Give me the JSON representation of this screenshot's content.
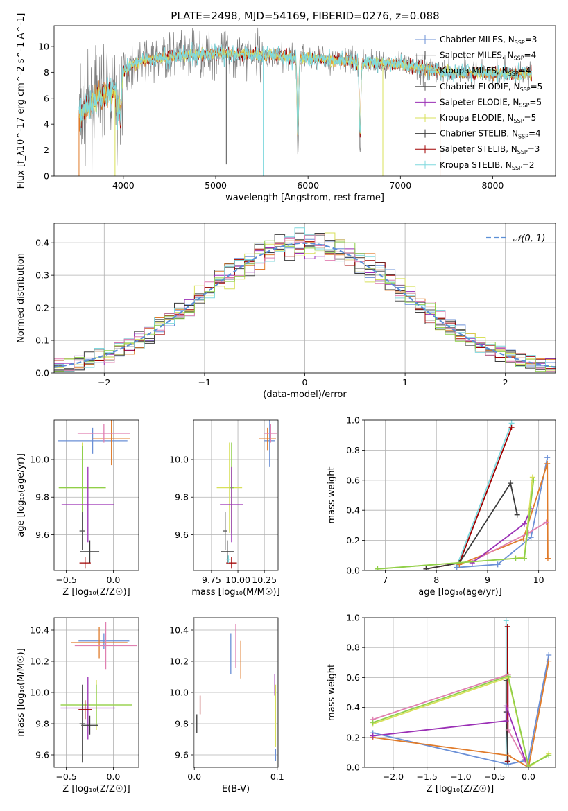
{
  "figure_title": "PLATE=2498, MJD=54169, FIBERID=0276, z=0.088",
  "colors": {
    "chabrier_miles": "#6a8fd6",
    "salpeter_miles": "#404040",
    "kroupa_miles": "#e07b2a",
    "chabrier_elodie": "#555555",
    "salpeter_elodie": "#9a2fb5",
    "kroupa_elodie": "#d8e05a",
    "chabrier_stelib": "#3a3a3a",
    "salpeter_stelib": "#a00000",
    "kroupa_stelib": "#7fd8de",
    "pink": "#e07fb0",
    "green": "#8ecf4a",
    "grey_spectrum": "#808080",
    "cyan_spectrum": "#77dddd",
    "normal_curve": "#5b8fd6",
    "grid": "#b0b0b0"
  },
  "chart_data": [
    {
      "id": "spectrum",
      "type": "line",
      "title": "PLATE=2498, MJD=54169, FIBERID=0276, z=0.088",
      "xlabel": "wavelength [Angstrom, rest frame]",
      "ylabel": "Flux [f_λ10^-17 erg cm^-2 s^-1 A^-1]",
      "xlim": [
        3250,
        8680
      ],
      "ylim": [
        0,
        11.6
      ],
      "xticks": [
        4000,
        5000,
        6000,
        7000,
        8000
      ],
      "yticks": [
        0,
        2,
        4,
        6,
        8,
        10
      ],
      "grid": false,
      "legend_position": "top-right",
      "legend": [
        {
          "label": "Chabrier MILES, N",
          "sub": "SSP",
          "tail": "=3",
          "color": "#6a8fd6"
        },
        {
          "label": "Salpeter MILES, N",
          "sub": "SSP",
          "tail": "=4",
          "color": "#404040"
        },
        {
          "label": "Kroupa MILES, N",
          "sub": "SSP",
          "tail": "=4",
          "color": "#e07b2a"
        },
        {
          "label": "Chabrier ELODIE, N",
          "sub": "SSP",
          "tail": "=5",
          "color": "#555555"
        },
        {
          "label": "Salpeter ELODIE, N",
          "sub": "SSP",
          "tail": "=5",
          "color": "#9a2fb5"
        },
        {
          "label": "Kroupa ELODIE, N",
          "sub": "SSP",
          "tail": "=5",
          "color": "#d8e05a"
        },
        {
          "label": "Chabrier STELIB, N",
          "sub": "SSP",
          "tail": "=4",
          "color": "#3a3a3a"
        },
        {
          "label": "Salpeter STELIB, N",
          "sub": "SSP",
          "tail": "=3",
          "color": "#a00000"
        },
        {
          "label": "Kroupa STELIB, N",
          "sub": "SSP",
          "tail": "=2",
          "color": "#7fd8de"
        }
      ],
      "continuum": [
        [
          3520,
          4.6
        ],
        [
          3600,
          5.2
        ],
        [
          3700,
          5.9
        ],
        [
          3800,
          6.3
        ],
        [
          3900,
          6.6
        ],
        [
          3950,
          6.5
        ],
        [
          4000,
          8.0
        ],
        [
          4100,
          8.6
        ],
        [
          4200,
          8.9
        ],
        [
          4400,
          9.1
        ],
        [
          4600,
          9.3
        ],
        [
          4800,
          9.4
        ],
        [
          5000,
          9.5
        ],
        [
          5200,
          9.4
        ],
        [
          5400,
          9.4
        ],
        [
          5600,
          9.3
        ],
        [
          5800,
          9.2
        ],
        [
          6000,
          9.1
        ],
        [
          6200,
          9.0
        ],
        [
          6400,
          8.9
        ],
        [
          6600,
          8.8
        ],
        [
          6800,
          8.7
        ],
        [
          7000,
          8.6
        ],
        [
          7200,
          8.4
        ],
        [
          7400,
          8.1
        ],
        [
          7600,
          8.0
        ],
        [
          7800,
          8.0
        ],
        [
          8000,
          7.9
        ],
        [
          8200,
          7.9
        ],
        [
          8400,
          7.9
        ]
      ],
      "dips": [
        [
          3935,
          2.4
        ],
        [
          3970,
          3.0
        ],
        [
          5890,
          7.6
        ],
        [
          6563,
          6.9
        ]
      ]
    },
    {
      "id": "residuals",
      "type": "histogram",
      "xlabel": "(data-model)/error",
      "ylabel": "Normed distribution",
      "xlim": [
        -2.5,
        2.5
      ],
      "ylim": [
        0,
        0.46
      ],
      "xticks": [
        -2,
        -1,
        0,
        1,
        2
      ],
      "yticks": [
        0,
        0.1,
        0.2,
        0.3,
        0.4
      ],
      "grid": true,
      "legend_position": "top-right",
      "legend": [
        {
          "label": "𝒩(0, 1)",
          "color": "#5b8fd6",
          "dash": true
        }
      ],
      "bin_width": 0.1
    },
    {
      "id": "age_vs_Z",
      "type": "errorbar",
      "xlabel": "Z [log₁₀(Z/Z☉)]",
      "ylabel": "age  [log₁₀(age/yr)]",
      "xlim": [
        -0.63,
        0.27
      ],
      "ylim": [
        9.41,
        10.21
      ],
      "xticks": [
        -0.5,
        0.0
      ],
      "yticks": [
        9.6,
        9.8,
        10.0
      ],
      "grid": true,
      "points": [
        {
          "x": -0.22,
          "y": 10.1,
          "xerr": 0.37,
          "yerr": 0.07,
          "color": "#6a8fd6"
        },
        {
          "x": -0.02,
          "y": 10.11,
          "xerr": 0.2,
          "yerr": 0.14,
          "color": "#e07b2a"
        },
        {
          "x": -0.1,
          "y": 10.14,
          "xerr": 0.28,
          "yerr": 0.05,
          "color": "#e07fb0"
        },
        {
          "x": -0.33,
          "y": 9.85,
          "xerr": 0.25,
          "yerr": 0.24,
          "color": "#d8e05a"
        },
        {
          "x": -0.33,
          "y": 9.85,
          "xerr": 0.25,
          "yerr": 0.22,
          "color": "#8ecf4a"
        },
        {
          "x": -0.27,
          "y": 9.76,
          "xerr": 0.28,
          "yerr": 0.2,
          "color": "#9a2fb5"
        },
        {
          "x": -0.25,
          "y": 9.51,
          "xerr": 0.1,
          "yerr": 0.06,
          "color": "#3a3a3a"
        },
        {
          "x": -0.33,
          "y": 9.62,
          "xerr": 0.03,
          "yerr": 0.1,
          "color": "#555555"
        },
        {
          "x": -0.3,
          "y": 9.45,
          "xerr": 0.06,
          "yerr": 0.03,
          "color": "#a00000"
        }
      ]
    },
    {
      "id": "age_vs_mass",
      "type": "errorbar",
      "xlabel": "mass [log₁₀(M/M☉)]",
      "ylabel": "",
      "xlim": [
        9.58,
        10.38
      ],
      "ylim": [
        9.41,
        10.21
      ],
      "xticks": [
        9.75,
        10.0,
        10.25
      ],
      "yticks": [
        9.6,
        9.8,
        10.0
      ],
      "grid": true,
      "points": [
        {
          "x": 10.3,
          "y": 10.1,
          "xerr": 0.05,
          "yerr": 0.14,
          "color": "#6a8fd6"
        },
        {
          "x": 10.28,
          "y": 10.11,
          "xerr": 0.08,
          "yerr": 0.06,
          "color": "#e07b2a"
        },
        {
          "x": 10.31,
          "y": 10.14,
          "xerr": 0.06,
          "yerr": 0.05,
          "color": "#e07fb0"
        },
        {
          "x": 9.92,
          "y": 9.85,
          "xerr": 0.12,
          "yerr": 0.24,
          "color": "#d8e05a"
        },
        {
          "x": 9.94,
          "y": 9.85,
          "xerr": 0.02,
          "yerr": 0.24,
          "color": "#8ecf4a"
        },
        {
          "x": 9.94,
          "y": 9.76,
          "xerr": 0.11,
          "yerr": 0.2,
          "color": "#9a2fb5"
        },
        {
          "x": 9.9,
          "y": 9.51,
          "xerr": 0.06,
          "yerr": 0.06,
          "color": "#3a3a3a"
        },
        {
          "x": 9.88,
          "y": 9.62,
          "xerr": 0.02,
          "yerr": 0.1,
          "color": "#555555"
        },
        {
          "x": 9.94,
          "y": 9.45,
          "xerr": 0.05,
          "yerr": 0.03,
          "color": "#a00000"
        },
        {
          "x": 9.91,
          "y": 9.47,
          "xerr": 0.02,
          "yerr": 0.02,
          "color": "#7fd8de"
        }
      ]
    },
    {
      "id": "massweight_vs_age",
      "type": "line",
      "xlabel": "age  [log₁₀(age/yr)]",
      "ylabel": "mass weight",
      "xlim": [
        6.6,
        10.33
      ],
      "ylim": [
        0,
        1.0
      ],
      "xticks": [
        7,
        8,
        9,
        10
      ],
      "yticks": [
        0.0,
        0.2,
        0.4,
        0.6,
        0.8,
        1.0
      ],
      "grid": true,
      "series": [
        {
          "color": "#7fd8de",
          "points": [
            [
              8.4,
              0.03
            ],
            [
              9.47,
              0.98
            ]
          ]
        },
        {
          "color": "#a00000",
          "points": [
            [
              7.8,
              0.01
            ],
            [
              8.45,
              0.05
            ],
            [
              9.47,
              0.95
            ]
          ]
        },
        {
          "color": "#3a3a3a",
          "points": [
            [
              7.8,
              0.01
            ],
            [
              8.45,
              0.05
            ],
            [
              9.45,
              0.58
            ],
            [
              9.58,
              0.37
            ]
          ]
        },
        {
          "color": "#6a8fd6",
          "points": [
            [
              8.4,
              0.02
            ],
            [
              9.2,
              0.04
            ],
            [
              9.85,
              0.22
            ],
            [
              10.17,
              0.75
            ]
          ]
        },
        {
          "color": "#e07b2a",
          "points": [
            [
              8.45,
              0.04
            ],
            [
              9.7,
              0.21
            ],
            [
              10.17,
              0.71
            ],
            [
              10.18,
              0.08
            ]
          ]
        },
        {
          "color": "#e07fb0",
          "points": [
            [
              8.7,
              0.06
            ],
            [
              9.8,
              0.25
            ],
            [
              10.15,
              0.32
            ]
          ]
        },
        {
          "color": "#9a2fb5",
          "points": [
            [
              8.7,
              0.05
            ],
            [
              9.72,
              0.31
            ],
            [
              9.85,
              0.41
            ]
          ]
        },
        {
          "color": "#d8e05a",
          "points": [
            [
              6.85,
              0.01
            ],
            [
              9.55,
              0.08
            ],
            [
              9.72,
              0.09
            ],
            [
              9.88,
              0.62
            ]
          ]
        },
        {
          "color": "#8ecf4a",
          "points": [
            [
              6.85,
              0.01
            ],
            [
              9.55,
              0.08
            ],
            [
              9.72,
              0.08
            ],
            [
              9.9,
              0.6
            ]
          ]
        }
      ]
    },
    {
      "id": "mass_vs_Z",
      "type": "errorbar",
      "xlabel": "Z [log₁₀(Z/Z☉)]",
      "ylabel": "mass [log₁₀(M/M☉)]",
      "xlim": [
        -0.63,
        0.27
      ],
      "ylim": [
        9.52,
        10.48
      ],
      "xticks": [
        -0.5,
        0.0
      ],
      "yticks": [
        9.6,
        9.8,
        10.0,
        10.2,
        10.4
      ],
      "grid": true,
      "points": [
        {
          "x": -0.1,
          "y": 10.33,
          "xerr": 0.27,
          "yerr": 0.05,
          "color": "#6a8fd6"
        },
        {
          "x": -0.15,
          "y": 10.32,
          "xerr": 0.3,
          "yerr": 0.1,
          "color": "#e07b2a"
        },
        {
          "x": -0.08,
          "y": 10.3,
          "xerr": 0.33,
          "yerr": 0.15,
          "color": "#e07fb0"
        },
        {
          "x": -0.18,
          "y": 9.92,
          "xerr": 0.38,
          "yerr": 0.16,
          "color": "#d8e05a"
        },
        {
          "x": -0.18,
          "y": 9.92,
          "xerr": 0.38,
          "yerr": 0.13,
          "color": "#8ecf4a"
        },
        {
          "x": -0.27,
          "y": 9.9,
          "xerr": 0.29,
          "yerr": 0.2,
          "color": "#9a2fb5"
        },
        {
          "x": -0.25,
          "y": 9.79,
          "xerr": 0.09,
          "yerr": 0.06,
          "color": "#3a3a3a"
        },
        {
          "x": -0.33,
          "y": 9.8,
          "xerr": 0.03,
          "yerr": 0.25,
          "color": "#555555"
        },
        {
          "x": -0.3,
          "y": 9.89,
          "xerr": 0.07,
          "yerr": 0.06,
          "color": "#a00000"
        }
      ]
    },
    {
      "id": "mass_vs_ebv",
      "type": "errorbar",
      "xlabel": "E(B-V)",
      "ylabel": "",
      "xlim": [
        -0.001,
        0.101
      ],
      "ylim": [
        9.52,
        10.48
      ],
      "xticks": [
        0.0,
        0.1
      ],
      "yticks": [
        9.6,
        9.8,
        10.0,
        10.2,
        10.4
      ],
      "grid": true,
      "points": [
        {
          "x": 0.044,
          "y": 10.25,
          "xerr": 0,
          "yerr": 0.13,
          "color": "#6a8fd6"
        },
        {
          "x": 0.05,
          "y": 10.3,
          "xerr": 0,
          "yerr": 0.14,
          "color": "#e07fb0"
        },
        {
          "x": 0.056,
          "y": 10.21,
          "xerr": 0,
          "yerr": 0.12,
          "color": "#e07b2a"
        },
        {
          "x": 0.097,
          "y": 10.05,
          "xerr": 0,
          "yerr": 0.07,
          "color": "#9a2fb5"
        },
        {
          "x": 0.098,
          "y": 9.85,
          "xerr": 0,
          "yerr": 0.2,
          "color": "#d8e05a"
        },
        {
          "x": 0.098,
          "y": 9.6,
          "xerr": 0,
          "yerr": 0.04,
          "color": "#6a8fd6"
        },
        {
          "x": 0.003,
          "y": 9.8,
          "xerr": 0,
          "yerr": 0.06,
          "color": "#3a3a3a"
        },
        {
          "x": 0.007,
          "y": 9.92,
          "xerr": 0,
          "yerr": 0.06,
          "color": "#a00000"
        }
      ]
    },
    {
      "id": "massweight_vs_Z",
      "type": "line",
      "xlabel": "Z [log₁₀(Z/Z☉)]",
      "ylabel": "mass weight",
      "xlim": [
        -2.42,
        0.4
      ],
      "ylim": [
        0,
        1.0
      ],
      "xticks": [
        -2.0,
        -1.5,
        -1.0,
        -0.5,
        0.0
      ],
      "yticks": [
        0.0,
        0.2,
        0.4,
        0.6,
        0.8,
        1.0
      ],
      "grid": true,
      "series": [
        {
          "color": "#7fd8de",
          "points": [
            [
              -0.33,
              0.98
            ],
            [
              -0.33,
              0.02
            ]
          ]
        },
        {
          "color": "#a00000",
          "points": [
            [
              -0.31,
              0.94
            ],
            [
              -0.31,
              0.04
            ]
          ]
        },
        {
          "color": "#3a3a3a",
          "points": [
            [
              -0.33,
              0.58
            ],
            [
              -0.33,
              0.37
            ],
            [
              -0.3,
              0.02
            ]
          ]
        },
        {
          "color": "#6a8fd6",
          "points": [
            [
              -2.3,
              0.23
            ],
            [
              -0.3,
              0.02
            ],
            [
              0.0,
              0.05
            ],
            [
              0.3,
              0.75
            ]
          ]
        },
        {
          "color": "#e07b2a",
          "points": [
            [
              -2.3,
              0.2
            ],
            [
              -0.3,
              0.08
            ],
            [
              0.0,
              0.0
            ],
            [
              0.3,
              0.71
            ]
          ]
        },
        {
          "color": "#e07fb0",
          "points": [
            [
              -2.3,
              0.32
            ],
            [
              -0.3,
              0.62
            ],
            [
              -0.3,
              0.25
            ],
            [
              0.0,
              0.0
            ]
          ]
        },
        {
          "color": "#9a2fb5",
          "points": [
            [
              -2.3,
              0.21
            ],
            [
              -0.33,
              0.31
            ],
            [
              -0.33,
              0.41
            ],
            [
              -0.05,
              0.05
            ]
          ]
        },
        {
          "color": "#d8e05a",
          "points": [
            [
              -2.3,
              0.29
            ],
            [
              -0.3,
              0.6
            ],
            [
              0.0,
              0.0
            ],
            [
              0.3,
              0.09
            ]
          ]
        },
        {
          "color": "#8ecf4a",
          "points": [
            [
              -2.3,
              0.3
            ],
            [
              -0.3,
              0.61
            ],
            [
              0.0,
              0.01
            ],
            [
              0.3,
              0.08
            ]
          ]
        }
      ]
    }
  ]
}
